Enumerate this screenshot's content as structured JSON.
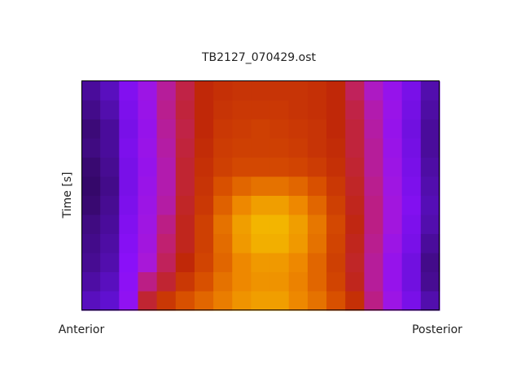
{
  "chart_data": {
    "type": "heatmap",
    "title": "TB2127_070429.ost",
    "ylabel": "Time [s]",
    "x_end_labels": [
      "Anterior",
      "Posterior"
    ],
    "zlim": [
      0,
      100
    ],
    "colormap": [
      "#1a0030",
      "#3c0a78",
      "#6010d0",
      "#8a10f8",
      "#a818d8",
      "#c02070",
      "#c02808",
      "#d85000",
      "#ee8800",
      "#f4c000",
      "#fff060"
    ],
    "values": [
      [
        14,
        18,
        28,
        36,
        46,
        54,
        60,
        62,
        63,
        63,
        63,
        63,
        62,
        60,
        52,
        42,
        34,
        26,
        16
      ],
      [
        12,
        16,
        27,
        35,
        47,
        55,
        60,
        63,
        64,
        64,
        64,
        63,
        62,
        60,
        54,
        44,
        35,
        25,
        15
      ],
      [
        10,
        14,
        26,
        34,
        46,
        54,
        60,
        64,
        65,
        66,
        65,
        64,
        63,
        60,
        55,
        45,
        34,
        24,
        14
      ],
      [
        11,
        14,
        27,
        35,
        45,
        55,
        61,
        65,
        66,
        66,
        66,
        65,
        63,
        61,
        55,
        46,
        35,
        25,
        14
      ],
      [
        9,
        13,
        26,
        34,
        44,
        56,
        62,
        66,
        68,
        68,
        68,
        67,
        65,
        62,
        56,
        46,
        36,
        26,
        15
      ],
      [
        8,
        12,
        26,
        35,
        44,
        56,
        63,
        70,
        74,
        76,
        76,
        74,
        70,
        64,
        57,
        47,
        37,
        27,
        16
      ],
      [
        9,
        13,
        27,
        36,
        45,
        57,
        64,
        73,
        80,
        84,
        84,
        80,
        74,
        66,
        58,
        48,
        38,
        28,
        17
      ],
      [
        11,
        14,
        28,
        37,
        48,
        58,
        66,
        76,
        84,
        88,
        88,
        84,
        77,
        68,
        59,
        48,
        38,
        27,
        16
      ],
      [
        12,
        15,
        29,
        38,
        50,
        58,
        66,
        75,
        83,
        87,
        87,
        83,
        76,
        67,
        58,
        47,
        36,
        26,
        14
      ],
      [
        13,
        16,
        30,
        40,
        52,
        60,
        67,
        74,
        80,
        83,
        83,
        80,
        74,
        66,
        57,
        46,
        34,
        24,
        12
      ],
      [
        15,
        18,
        31,
        48,
        56,
        64,
        70,
        76,
        80,
        82,
        82,
        79,
        74,
        67,
        58,
        46,
        34,
        24,
        13
      ],
      [
        18,
        20,
        32,
        56,
        64,
        70,
        74,
        78,
        82,
        84,
        84,
        80,
        76,
        70,
        62,
        48,
        36,
        26,
        16
      ]
    ]
  }
}
